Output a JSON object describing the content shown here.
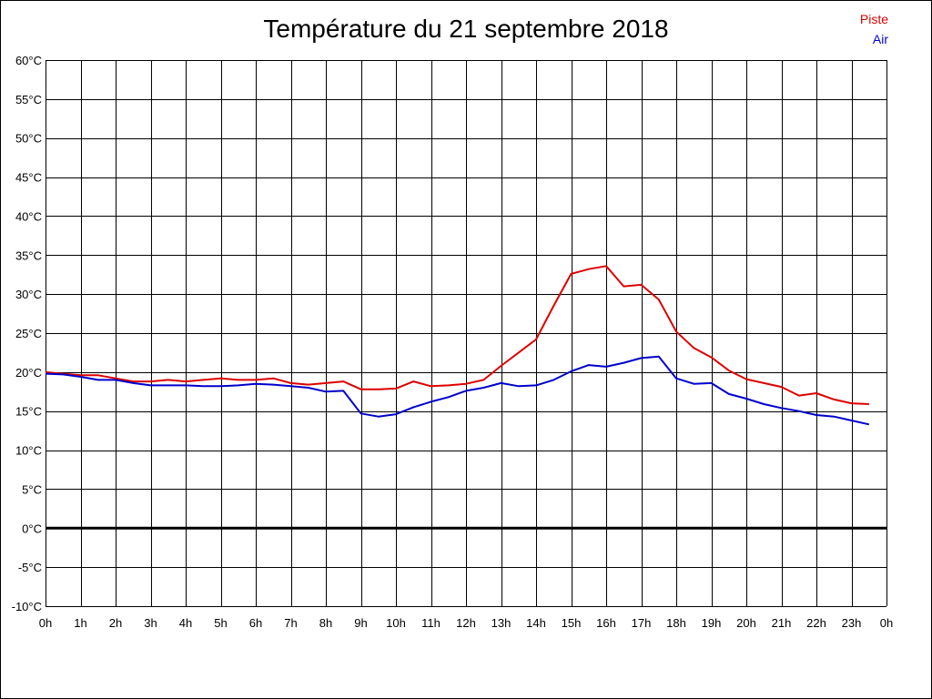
{
  "chart_data": {
    "type": "line",
    "title": "Température du 21 septembre 2018",
    "xlabel": "",
    "ylabel": "",
    "ylim": [
      -10,
      60
    ],
    "xlim": [
      0,
      24
    ],
    "grid": true,
    "legend_placement": "top-right",
    "x_tick_labels": [
      "0h",
      "1h",
      "2h",
      "3h",
      "4h",
      "5h",
      "6h",
      "7h",
      "8h",
      "9h",
      "10h",
      "11h",
      "12h",
      "13h",
      "14h",
      "15h",
      "16h",
      "17h",
      "18h",
      "19h",
      "20h",
      "21h",
      "22h",
      "23h",
      "0h"
    ],
    "y_tick_labels": [
      "60°C",
      "55°C",
      "50°C",
      "45°C",
      "40°C",
      "35°C",
      "30°C",
      "25°C",
      "20°C",
      "15°C",
      "10°C",
      "5°C",
      "0°C",
      "-5°C",
      "-10°C"
    ],
    "y_tick_values": [
      60,
      55,
      50,
      45,
      40,
      35,
      30,
      25,
      20,
      15,
      10,
      5,
      0,
      -5,
      -10
    ],
    "zero_line": true,
    "series": [
      {
        "name": "Piste",
        "color": "#dd0000",
        "x": [
          0,
          0.5,
          1,
          1.5,
          2,
          2.5,
          3,
          3.5,
          4,
          4.5,
          5,
          5.5,
          6,
          6.5,
          7,
          7.5,
          8,
          8.5,
          9,
          9.5,
          10,
          10.5,
          11,
          11.5,
          12,
          12.5,
          13,
          13.5,
          14,
          14.5,
          15,
          15.5,
          16,
          16.5,
          17,
          17.5,
          18,
          18.5,
          19,
          19.5,
          20,
          20.5,
          21,
          21.5,
          22,
          22.5,
          23,
          23.5
        ],
        "values": [
          20.0,
          19.8,
          19.6,
          19.6,
          19.2,
          18.8,
          18.8,
          19.0,
          18.8,
          19.0,
          19.2,
          19.0,
          19.0,
          19.2,
          18.6,
          18.4,
          18.6,
          18.8,
          17.8,
          17.8,
          17.9,
          18.8,
          18.2,
          18.3,
          18.5,
          19.0,
          20.8,
          22.5,
          24.2,
          28.5,
          32.6,
          33.2,
          33.6,
          31.0,
          31.2,
          29.3,
          25.2,
          23.1,
          21.9,
          20.2,
          19.1,
          18.6,
          18.1,
          17.0,
          17.3,
          16.5,
          16.0,
          15.9
        ]
      },
      {
        "name": "Air",
        "color": "#0000cc",
        "x": [
          0,
          0.5,
          1,
          1.5,
          2,
          2.5,
          3,
          3.5,
          4,
          4.5,
          5,
          5.5,
          6,
          6.5,
          7,
          7.5,
          8,
          8.5,
          9,
          9.5,
          10,
          10.5,
          11,
          11.5,
          12,
          12.5,
          13,
          13.5,
          14,
          14.5,
          15,
          15.5,
          16,
          16.5,
          17,
          17.5,
          18,
          18.5,
          19,
          19.5,
          20,
          20.5,
          21,
          21.5,
          22,
          22.5,
          23,
          23.5
        ],
        "values": [
          19.8,
          19.7,
          19.4,
          19.0,
          19.0,
          18.6,
          18.3,
          18.3,
          18.3,
          18.2,
          18.2,
          18.3,
          18.5,
          18.4,
          18.2,
          18.0,
          17.5,
          17.6,
          14.7,
          14.3,
          14.6,
          15.5,
          16.2,
          16.8,
          17.6,
          18.0,
          18.6,
          18.2,
          18.3,
          19.0,
          20.1,
          20.9,
          20.7,
          21.2,
          21.8,
          22.0,
          19.2,
          18.5,
          18.6,
          17.2,
          16.6,
          15.9,
          15.4,
          15.0,
          14.5,
          14.3,
          13.8,
          13.3
        ]
      }
    ]
  }
}
